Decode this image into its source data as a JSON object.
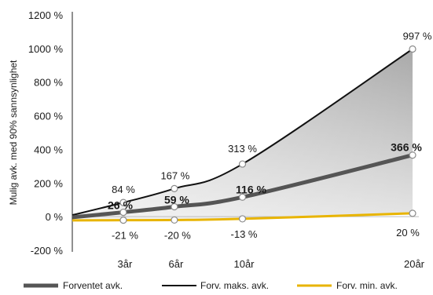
{
  "chart_data": {
    "type": "area",
    "y_axis_label": "Mulig avk. med 90% sannsynlighet",
    "y_ticks": [
      "1200 %",
      "1000 %",
      "800 %",
      "600 %",
      "400 %",
      "200 %",
      "0 %",
      "-200 %"
    ],
    "ylim": [
      -200,
      1200
    ],
    "x_ticks": [
      {
        "x": 3,
        "label": "3år"
      },
      {
        "x": 6,
        "label": "6år"
      },
      {
        "x": 10,
        "label": "10år"
      },
      {
        "x": 20,
        "label": "20år"
      }
    ],
    "xlim": [
      0,
      20
    ],
    "series": [
      {
        "name": "Forventet avk.",
        "color": "#555555",
        "values": [
          [
            3,
            26
          ],
          [
            6,
            59
          ],
          [
            10,
            116
          ],
          [
            20,
            366
          ]
        ],
        "labels": [
          "26 %",
          "59 %",
          "116 %",
          "366 %"
        ]
      },
      {
        "name": "Forv. maks. avk.",
        "color": "#111111",
        "values": [
          [
            3,
            84
          ],
          [
            6,
            167
          ],
          [
            10,
            313
          ],
          [
            20,
            997
          ]
        ],
        "labels": [
          "84 %",
          "167 %",
          "313 %",
          "997 %"
        ]
      },
      {
        "name": "Forv. min. avk.",
        "color": "#e8b400",
        "values": [
          [
            3,
            -21
          ],
          [
            6,
            -20
          ],
          [
            10,
            -13
          ],
          [
            20,
            20
          ]
        ],
        "labels": [
          "-21 %",
          "-20 %",
          "-13 %",
          "20 %"
        ]
      }
    ],
    "legend_position": "bottom"
  }
}
